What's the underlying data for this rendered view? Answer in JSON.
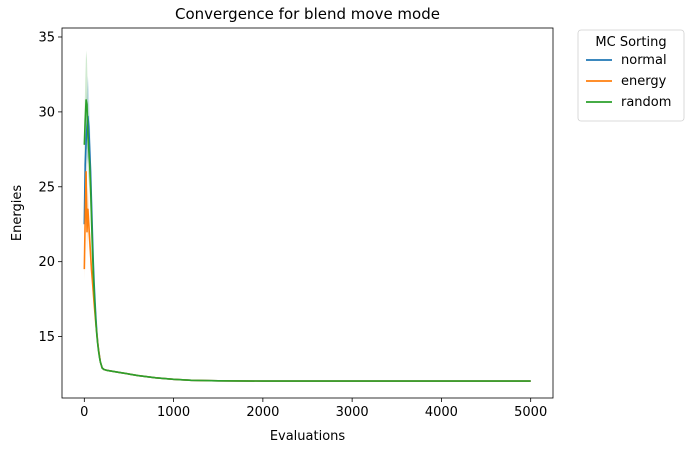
{
  "chart_data": {
    "type": "line",
    "title": "Convergence for blend move mode",
    "xlabel": "Evaluations",
    "ylabel": "Energies",
    "xlim": [
      -250,
      5250
    ],
    "ylim": [
      10.9,
      35.6
    ],
    "xticks": [
      0,
      1000,
      2000,
      3000,
      4000,
      5000
    ],
    "yticks": [
      15,
      20,
      25,
      30,
      35
    ],
    "grid": false,
    "legend": {
      "title": "MC Sorting",
      "placement": "outside-top-right"
    },
    "series": [
      {
        "name": "normal",
        "color": "#1f77b4",
        "x": [
          0,
          10,
          20,
          30,
          40,
          50,
          60,
          70,
          80,
          90,
          100,
          110,
          120,
          130,
          140,
          150,
          160,
          170,
          180,
          190,
          200,
          220,
          250,
          300,
          400,
          500,
          600,
          800,
          1000,
          1200,
          1500,
          2000,
          3000,
          4000,
          5000
        ],
        "y": [
          22.5,
          26.5,
          28.0,
          29.0,
          29.7,
          29.0,
          27.5,
          26.0,
          24.0,
          22.0,
          20.0,
          18.5,
          17.3,
          16.2,
          15.3,
          14.6,
          14.1,
          13.7,
          13.3,
          13.1,
          12.9,
          12.8,
          12.75,
          12.7,
          12.6,
          12.5,
          12.4,
          12.25,
          12.15,
          12.08,
          12.05,
          12.03,
          12.03,
          12.03,
          12.03
        ],
        "band": [
          0.2,
          2.0,
          2.5,
          2.5,
          2.7,
          2.5,
          2.2,
          1.8,
          1.5,
          1.2,
          1.0,
          0.8,
          0.6,
          0.5,
          0.4,
          0.3,
          0.25,
          0.2,
          0.15,
          0.1,
          0.08,
          0.05,
          0.04,
          0.03,
          0.02,
          0.02,
          0.02,
          0.01,
          0.01,
          0.01,
          0.01,
          0.01,
          0.01,
          0.01,
          0.01
        ]
      },
      {
        "name": "energy",
        "color": "#ff7f0e",
        "x": [
          0,
          10,
          20,
          30,
          40,
          50,
          60,
          70,
          80,
          90,
          100,
          110,
          120,
          130,
          140,
          150,
          160,
          170,
          180,
          190,
          200,
          220,
          250,
          300,
          400,
          500,
          600,
          800,
          1000,
          1200,
          1500,
          2000,
          3000,
          4000,
          5000
        ],
        "y": [
          19.5,
          23.0,
          26.0,
          22.0,
          23.5,
          22.5,
          21.5,
          20.5,
          19.5,
          18.8,
          18.0,
          17.2,
          16.5,
          15.8,
          15.2,
          14.6,
          14.1,
          13.7,
          13.3,
          13.1,
          12.9,
          12.8,
          12.75,
          12.7,
          12.6,
          12.5,
          12.4,
          12.25,
          12.15,
          12.08,
          12.05,
          12.03,
          12.03,
          12.03,
          12.03
        ],
        "band": [
          0.8,
          1.5,
          2.0,
          1.5,
          1.5,
          1.2,
          1.0,
          0.9,
          0.8,
          0.7,
          0.6,
          0.5,
          0.4,
          0.35,
          0.3,
          0.25,
          0.2,
          0.15,
          0.12,
          0.1,
          0.08,
          0.05,
          0.04,
          0.03,
          0.02,
          0.02,
          0.02,
          0.01,
          0.01,
          0.01,
          0.01,
          0.01,
          0.01,
          0.01,
          0.01
        ]
      },
      {
        "name": "random",
        "color": "#2ca02c",
        "x": [
          0,
          10,
          20,
          30,
          40,
          50,
          60,
          70,
          80,
          90,
          100,
          110,
          120,
          130,
          140,
          150,
          160,
          170,
          180,
          190,
          200,
          220,
          250,
          300,
          400,
          500,
          600,
          800,
          1000,
          1200,
          1500,
          2000,
          3000,
          4000,
          5000
        ],
        "y": [
          27.8,
          29.5,
          30.8,
          30.5,
          28.5,
          27.5,
          26.5,
          25.0,
          23.0,
          21.0,
          19.3,
          18.0,
          16.9,
          15.9,
          15.1,
          14.5,
          14.0,
          13.6,
          13.3,
          13.1,
          12.9,
          12.8,
          12.75,
          12.7,
          12.6,
          12.5,
          12.4,
          12.25,
          12.15,
          12.08,
          12.05,
          12.03,
          12.03,
          12.03,
          12.03
        ],
        "band": [
          1.5,
          2.5,
          3.3,
          3.0,
          2.5,
          2.2,
          2.0,
          1.8,
          1.5,
          1.2,
          1.0,
          0.8,
          0.6,
          0.5,
          0.4,
          0.3,
          0.25,
          0.2,
          0.15,
          0.1,
          0.08,
          0.05,
          0.04,
          0.03,
          0.02,
          0.02,
          0.02,
          0.01,
          0.01,
          0.01,
          0.01,
          0.01,
          0.01,
          0.01,
          0.01
        ]
      }
    ]
  }
}
